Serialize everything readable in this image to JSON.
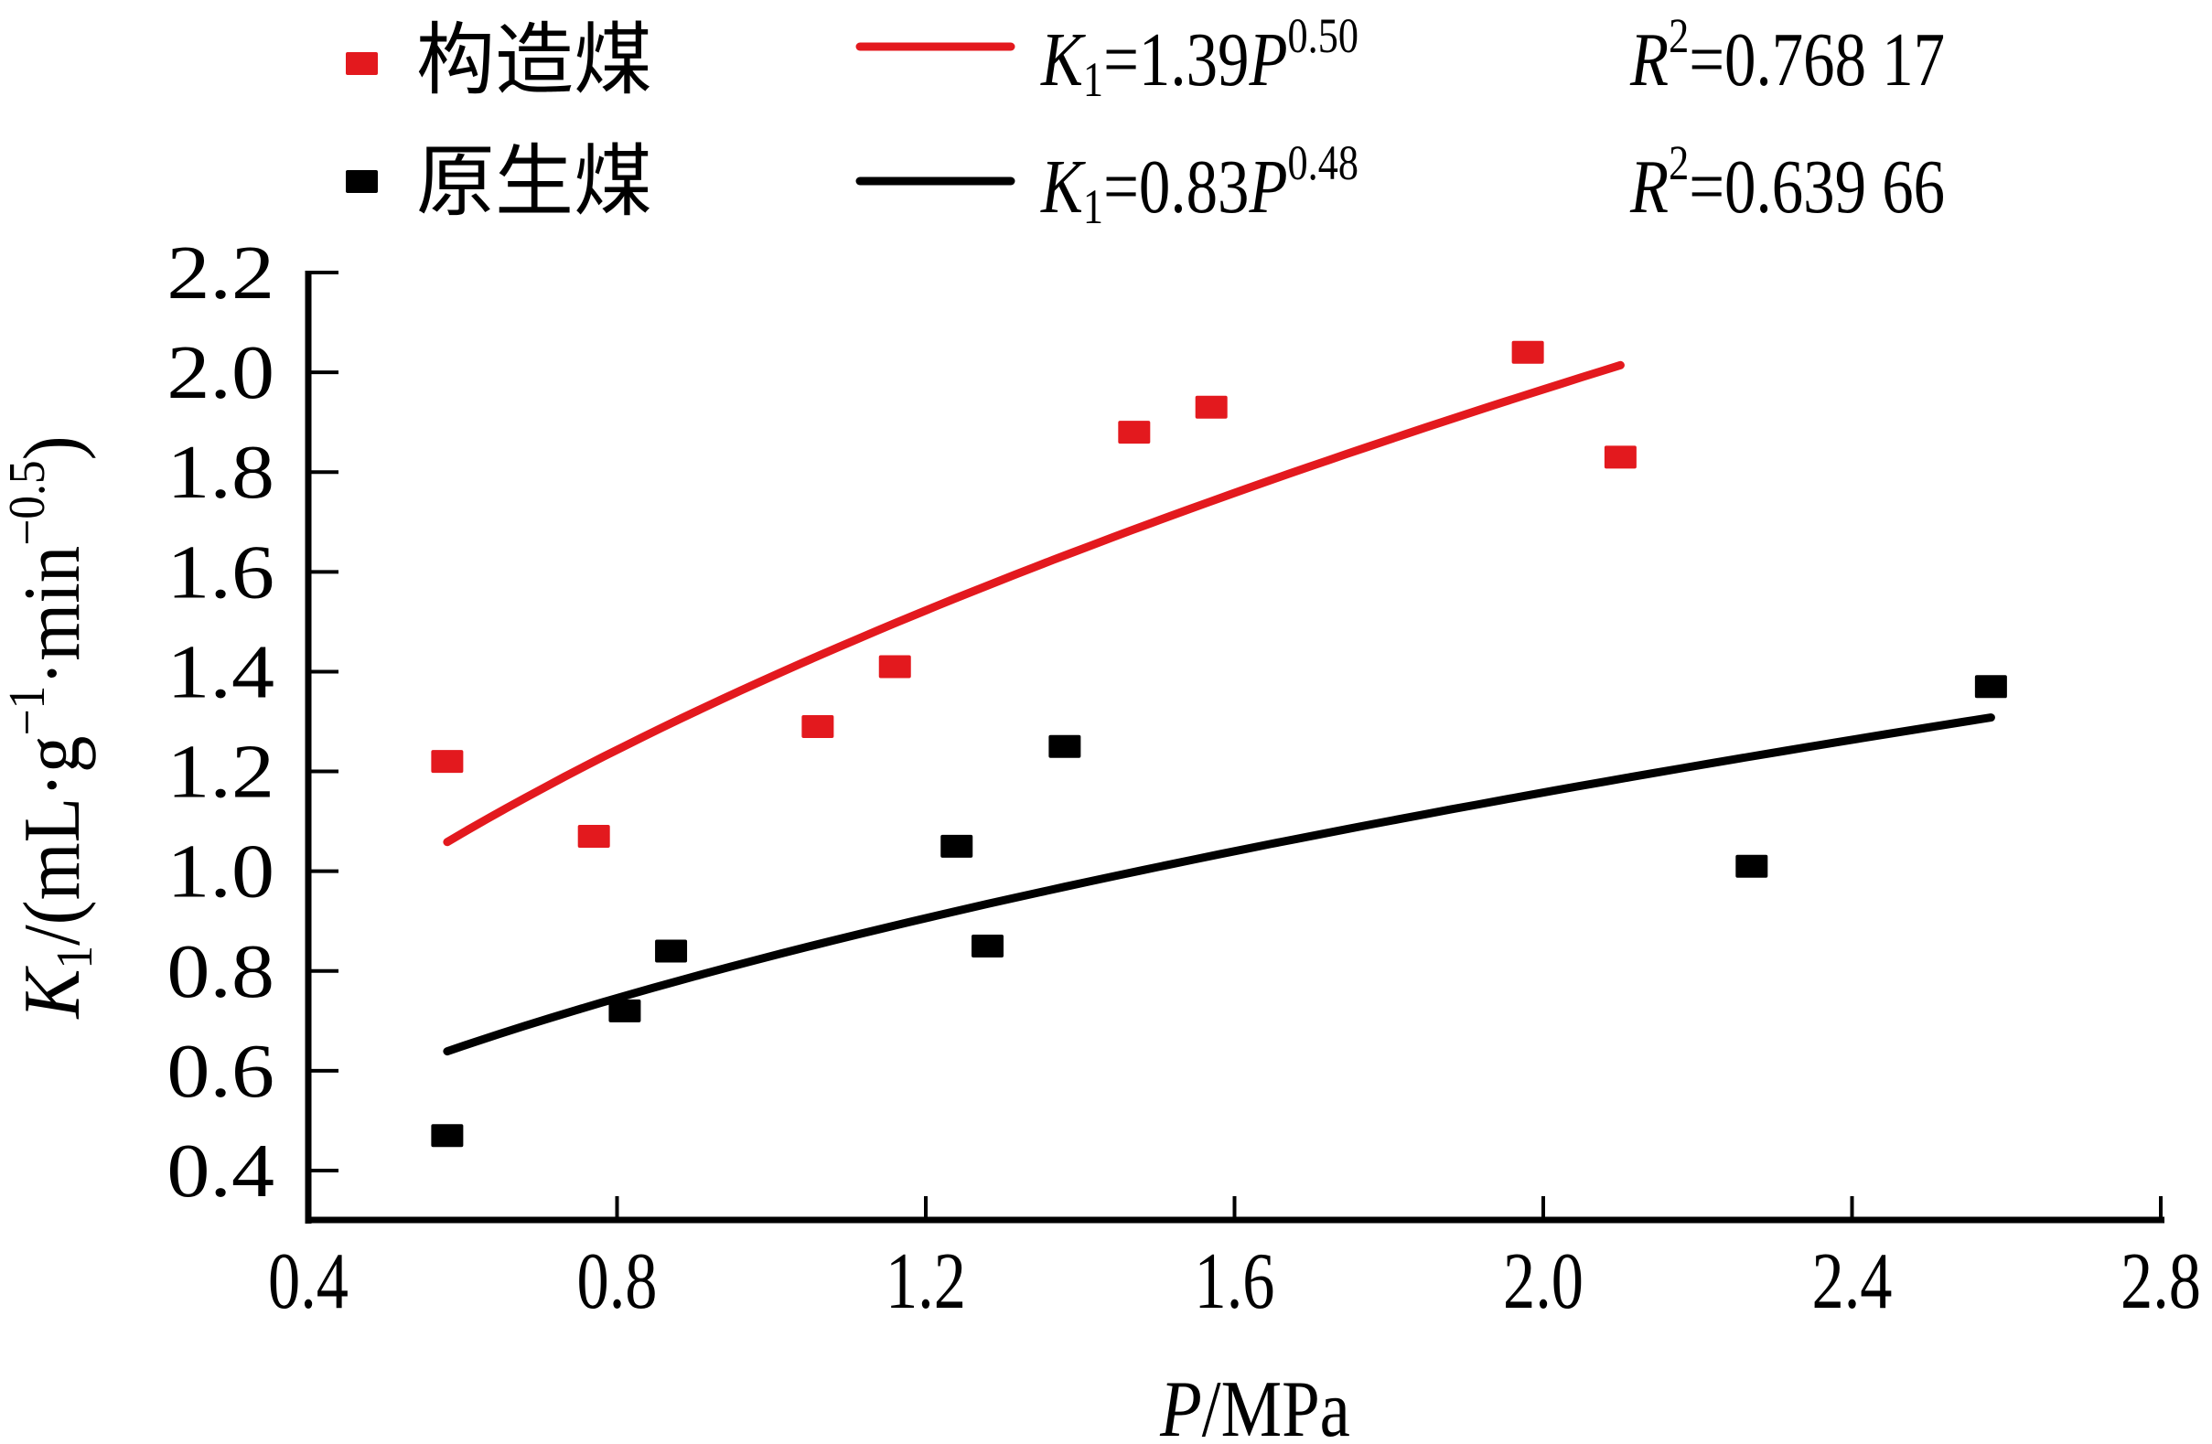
{
  "chart_data": {
    "type": "scatter",
    "title": "",
    "xlabel": {
      "italic": "P",
      "rest": "/MPa"
    },
    "ylabel": {
      "italic": "K",
      "sub": "1",
      "rest_pre": "/(mL·g",
      "sup1": "−1",
      "mid": "·min",
      "sup2": "−0.5",
      "close": ")"
    },
    "xlim": [
      0.4,
      2.8
    ],
    "ylim": [
      0.3,
      2.2
    ],
    "x_ticks": [
      "0.4",
      "0.8",
      "1.2",
      "1.6",
      "2.0",
      "2.4",
      "2.8"
    ],
    "y_ticks": [
      "0.4",
      "0.6",
      "0.8",
      "1.0",
      "1.2",
      "1.4",
      "1.6",
      "1.8",
      "2.0",
      "2.2"
    ],
    "grid": false,
    "legend_position": "top",
    "series": [
      {
        "name": "构造煤",
        "color": "#E3191E",
        "marker": "square",
        "x": [
          0.58,
          0.77,
          1.06,
          1.16,
          1.47,
          1.57,
          1.98,
          2.1
        ],
        "y": [
          1.22,
          1.07,
          1.29,
          1.41,
          1.88,
          1.93,
          2.04,
          1.83
        ],
        "fit": {
          "coef": 1.39,
          "exp": 0.5,
          "x_range": [
            0.58,
            2.1
          ],
          "coef_label": "1.39",
          "exp_label": "0.50",
          "r2_label": "0.768 17"
        }
      },
      {
        "name": "原生煤",
        "color": "#000000",
        "marker": "square",
        "x": [
          0.58,
          0.81,
          0.87,
          1.24,
          1.28,
          1.38,
          2.27,
          2.58
        ],
        "y": [
          0.47,
          0.72,
          0.84,
          1.05,
          0.85,
          1.25,
          1.01,
          1.37
        ],
        "fit": {
          "coef": 0.83,
          "exp": 0.48,
          "x_range": [
            0.58,
            2.58
          ],
          "coef_label": "0.83",
          "exp_label": "0.48",
          "r2_label": "0.639 66"
        }
      }
    ],
    "equation_symbols": {
      "K": "K",
      "sub": "1",
      "eq": "=",
      "P": "P",
      "R": "R",
      "r2sup": "2"
    }
  }
}
